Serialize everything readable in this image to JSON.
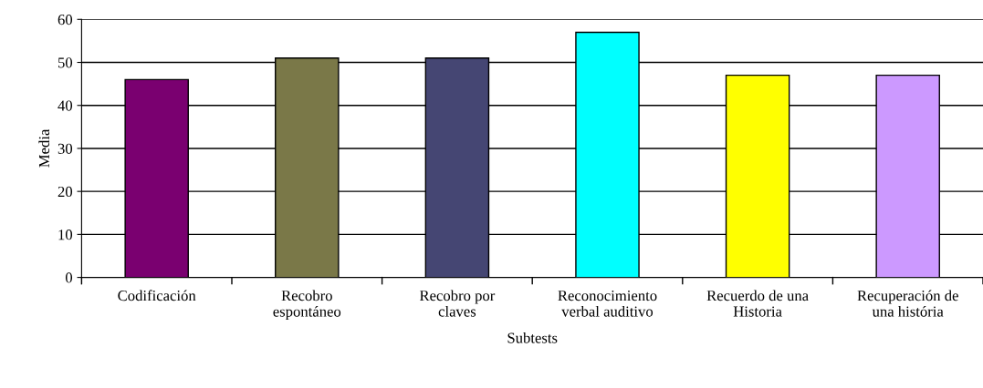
{
  "chart_data": {
    "type": "bar",
    "xlabel": "Subtests",
    "ylabel": "Media",
    "categories": [
      "Codificación",
      "Recobro\nespontáneo",
      "Recobro por\nclaves",
      "Reconocimiento\nverbal auditivo",
      "Recuerdo de una\nHistoria",
      "Recuperación de\nuna história"
    ],
    "values": [
      46,
      51,
      51,
      57,
      47,
      47
    ],
    "colors": [
      "#7a0070",
      "#7a7848",
      "#454673",
      "#00ffff",
      "#ffff00",
      "#cc99ff"
    ],
    "ylim": [
      0,
      60
    ],
    "yticks": [
      0,
      10,
      20,
      30,
      40,
      50,
      60
    ],
    "grid": "y"
  }
}
